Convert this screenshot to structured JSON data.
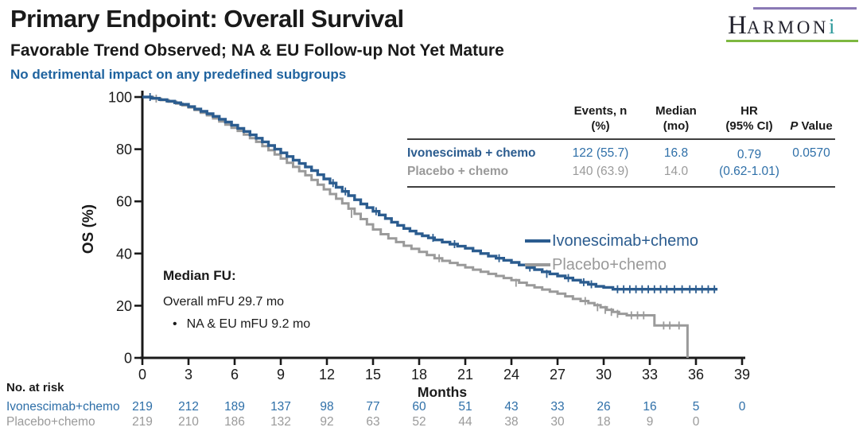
{
  "slide": {
    "title": "Primary Endpoint: Overall Survival",
    "subtitle": "Favorable Trend Observed; NA & EU Follow-up Not Yet Mature",
    "note": "No detrimental impact on any predefined subgroups"
  },
  "logo": {
    "letter_h": "H",
    "letters_rest": "ARMON",
    "letter_i": "i"
  },
  "colors": {
    "dark": "#1a1a1a",
    "note_blue": "#1f639f",
    "accent_blue": "#2b5c8f",
    "text_blue": "#2e6fa8",
    "gray": "#9a9a9a",
    "logo_purple": "#8a79b5",
    "logo_green": "#7db840",
    "logo_teal": "#2f9a9c"
  },
  "stats_table": {
    "headers": [
      {
        "l1": "Events, n",
        "l2": "(%)"
      },
      {
        "l1": "Median",
        "l2": "(mo)"
      },
      {
        "l1": "HR",
        "l2": "(95% CI)"
      },
      {
        "l1_italic": "P",
        "l1_rest": " Value"
      }
    ],
    "rows": [
      {
        "label": "Ivonescimab + chemo",
        "events": "122 (55.7)",
        "median": "16.8",
        "p": "0.0570"
      },
      {
        "label": "Placebo + chemo",
        "events": "140 (63.9)",
        "median": "14.0",
        "p": ""
      }
    ],
    "hr_line1": "0.79",
    "hr_line2": "(0.62-1.01)"
  },
  "median_fu": {
    "heading": "Median FU:",
    "line1": "Overall mFU 29.7 mo",
    "bullet": "NA & EU mFU 9.2 mo"
  },
  "legend": [
    {
      "label": "Ivonescimab+chemo",
      "color": "#2b5c8f"
    },
    {
      "label": "Placebo+chemo",
      "color": "#9a9a9a"
    }
  ],
  "at_risk": {
    "heading": "No. at risk",
    "months": [
      0,
      3,
      6,
      9,
      12,
      15,
      18,
      21,
      24,
      27,
      30,
      33,
      36,
      39
    ],
    "rows": [
      {
        "label": "Ivonescimab+chemo",
        "color": "#2e6fa8",
        "values": [
          219,
          212,
          189,
          137,
          98,
          77,
          60,
          51,
          43,
          33,
          26,
          16,
          5,
          0
        ]
      },
      {
        "label": "Placebo+chemo",
        "color": "#9a9a9a",
        "values": [
          219,
          210,
          186,
          132,
          92,
          63,
          52,
          44,
          38,
          30,
          18,
          9,
          0,
          null
        ]
      }
    ]
  },
  "chart_data": {
    "type": "line",
    "subtype": "kaplan-meier-step",
    "title": "",
    "xlabel": "Months",
    "ylabel": "OS (%)",
    "xlim": [
      0,
      39
    ],
    "ylim": [
      0,
      100
    ],
    "x_ticks": [
      0,
      3,
      6,
      9,
      12,
      15,
      18,
      21,
      24,
      27,
      30,
      33,
      36,
      39
    ],
    "y_ticks": [
      0,
      20,
      40,
      60,
      80,
      100
    ],
    "grid": false,
    "legend_position": "right-middle",
    "series": [
      {
        "name": "Ivonescimab+chemo",
        "color": "#2b5c8f",
        "width": 3.4,
        "median_months": 16.8,
        "step_points": [
          [
            0,
            100
          ],
          [
            0.6,
            99.5
          ],
          [
            1.1,
            99
          ],
          [
            1.6,
            98.4
          ],
          [
            2.1,
            97.8
          ],
          [
            2.5,
            97.2
          ],
          [
            3,
            96.3
          ],
          [
            3.4,
            95.4
          ],
          [
            3.8,
            94.5
          ],
          [
            4.2,
            93.6
          ],
          [
            4.6,
            92.6
          ],
          [
            5,
            91.5
          ],
          [
            5.4,
            90.4
          ],
          [
            5.8,
            89.2
          ],
          [
            6.2,
            88
          ],
          [
            6.6,
            86.8
          ],
          [
            7,
            85.5
          ],
          [
            7.4,
            84.2
          ],
          [
            7.8,
            82.8
          ],
          [
            8.2,
            81.4
          ],
          [
            8.6,
            80
          ],
          [
            9,
            78.6
          ],
          [
            9.4,
            77.2
          ],
          [
            9.8,
            75.8
          ],
          [
            10.2,
            74.5
          ],
          [
            10.6,
            73.2
          ],
          [
            11,
            71.8
          ],
          [
            11.4,
            70.2
          ],
          [
            11.8,
            68.6
          ],
          [
            12.2,
            67
          ],
          [
            12.6,
            65.4
          ],
          [
            13,
            63.8
          ],
          [
            13.4,
            62.2
          ],
          [
            13.8,
            60.6
          ],
          [
            14.2,
            59
          ],
          [
            14.6,
            57.6
          ],
          [
            15,
            56.2
          ],
          [
            15.4,
            54.8
          ],
          [
            15.8,
            53.4
          ],
          [
            16.2,
            52
          ],
          [
            16.6,
            50.8
          ],
          [
            17,
            49.6
          ],
          [
            17.4,
            48.6
          ],
          [
            17.8,
            47.6
          ],
          [
            18.2,
            46.8
          ],
          [
            18.6,
            46
          ],
          [
            19,
            45.2
          ],
          [
            19.5,
            44.4
          ],
          [
            20,
            43.6
          ],
          [
            20.5,
            42.8
          ],
          [
            21,
            42
          ],
          [
            21.5,
            41
          ],
          [
            22,
            40
          ],
          [
            22.5,
            39
          ],
          [
            23,
            38.2
          ],
          [
            23.5,
            37.4
          ],
          [
            24,
            36.6
          ],
          [
            24.5,
            35.6
          ],
          [
            25,
            34.6
          ],
          [
            25.5,
            33.8
          ],
          [
            26,
            33
          ],
          [
            26.5,
            32.2
          ],
          [
            27,
            31.4
          ],
          [
            27.5,
            30.6
          ],
          [
            28,
            29.8
          ],
          [
            28.5,
            29
          ],
          [
            29,
            28.2
          ],
          [
            29.5,
            27.4
          ],
          [
            30,
            27
          ],
          [
            30.6,
            26.3
          ],
          [
            37.4,
            26.3
          ]
        ],
        "censors": [
          [
            0.5,
            100
          ],
          [
            12.4,
            67
          ],
          [
            13.2,
            63.8
          ],
          [
            15.2,
            56.2
          ],
          [
            18.9,
            46
          ],
          [
            20.3,
            43.6
          ],
          [
            23.2,
            38.2
          ],
          [
            25.2,
            34.6
          ],
          [
            26.3,
            32.2
          ],
          [
            27.7,
            30.6
          ],
          [
            28.7,
            29
          ],
          [
            29.2,
            28.2
          ],
          [
            30.9,
            26.3
          ],
          [
            31.3,
            26.3
          ],
          [
            31.7,
            26.3
          ],
          [
            32.1,
            26.3
          ],
          [
            32.5,
            26.3
          ],
          [
            32.9,
            26.3
          ],
          [
            33.3,
            26.3
          ],
          [
            33.7,
            26.3
          ],
          [
            34.1,
            26.3
          ],
          [
            34.6,
            26.3
          ],
          [
            35.1,
            26.3
          ],
          [
            35.6,
            26.3
          ],
          [
            36,
            26.3
          ],
          [
            36.4,
            26.3
          ],
          [
            36.8,
            26.3
          ],
          [
            37.2,
            26.3
          ]
        ]
      },
      {
        "name": "Placebo+chemo",
        "color": "#9a9a9a",
        "width": 3,
        "median_months": 14.0,
        "step_points": [
          [
            0,
            100
          ],
          [
            0.7,
            99.4
          ],
          [
            1.2,
            98.8
          ],
          [
            1.7,
            98.2
          ],
          [
            2.2,
            97.5
          ],
          [
            2.6,
            96.8
          ],
          [
            3,
            96
          ],
          [
            3.4,
            95
          ],
          [
            3.8,
            94
          ],
          [
            4.2,
            93
          ],
          [
            4.6,
            91.8
          ],
          [
            5,
            90.6
          ],
          [
            5.4,
            89.4
          ],
          [
            5.8,
            88.2
          ],
          [
            6.2,
            87
          ],
          [
            6.6,
            85.6
          ],
          [
            7,
            84.2
          ],
          [
            7.4,
            82.8
          ],
          [
            7.8,
            81.2
          ],
          [
            8.2,
            79.6
          ],
          [
            8.6,
            78
          ],
          [
            9,
            76.4
          ],
          [
            9.4,
            74.8
          ],
          [
            9.8,
            73.2
          ],
          [
            10.2,
            71.6
          ],
          [
            10.6,
            70
          ],
          [
            11,
            68.2
          ],
          [
            11.4,
            66.4
          ],
          [
            11.8,
            64.6
          ],
          [
            12.2,
            62.8
          ],
          [
            12.6,
            61
          ],
          [
            13,
            59.2
          ],
          [
            13.4,
            57.2
          ],
          [
            13.8,
            55.2
          ],
          [
            14.2,
            53.2
          ],
          [
            14.6,
            51.2
          ],
          [
            15,
            49.2
          ],
          [
            15.5,
            47.4
          ],
          [
            16,
            45.8
          ],
          [
            16.5,
            44.4
          ],
          [
            17,
            43
          ],
          [
            17.5,
            41.8
          ],
          [
            18,
            40.6
          ],
          [
            18.5,
            39.4
          ],
          [
            19,
            38.2
          ],
          [
            19.5,
            37.2
          ],
          [
            20,
            36.4
          ],
          [
            20.5,
            35.6
          ],
          [
            21,
            34.7
          ],
          [
            21.5,
            33.8
          ],
          [
            22,
            33
          ],
          [
            22.5,
            32.2
          ],
          [
            23,
            31.4
          ],
          [
            23.5,
            30.6
          ],
          [
            24,
            29.8
          ],
          [
            24.5,
            28.8
          ],
          [
            25,
            27.8
          ],
          [
            25.5,
            27
          ],
          [
            26,
            26.2
          ],
          [
            26.5,
            25.4
          ],
          [
            27,
            24.6
          ],
          [
            27.5,
            23.6
          ],
          [
            28,
            22.6
          ],
          [
            28.5,
            21.8
          ],
          [
            29,
            21
          ],
          [
            29.4,
            20.2
          ],
          [
            29.8,
            19.4
          ],
          [
            30.2,
            18.4
          ],
          [
            30.6,
            17.6
          ],
          [
            31,
            16.9
          ],
          [
            31.5,
            16.3
          ],
          [
            33.3,
            12.4
          ],
          [
            35.45,
            0
          ]
        ],
        "censors": [
          [
            0.9,
            99.4
          ],
          [
            13.6,
            55.2
          ],
          [
            19.3,
            38.2
          ],
          [
            24.3,
            28.8
          ],
          [
            28.8,
            21.8
          ],
          [
            29.6,
            19.4
          ],
          [
            30.1,
            18.4
          ],
          [
            30.5,
            17.6
          ],
          [
            30.9,
            16.9
          ],
          [
            31.8,
            16.3
          ],
          [
            32.2,
            16.3
          ],
          [
            32.6,
            16.3
          ],
          [
            33.9,
            12.4
          ],
          [
            34.3,
            12.4
          ],
          [
            34.9,
            12.4
          ]
        ]
      }
    ]
  }
}
